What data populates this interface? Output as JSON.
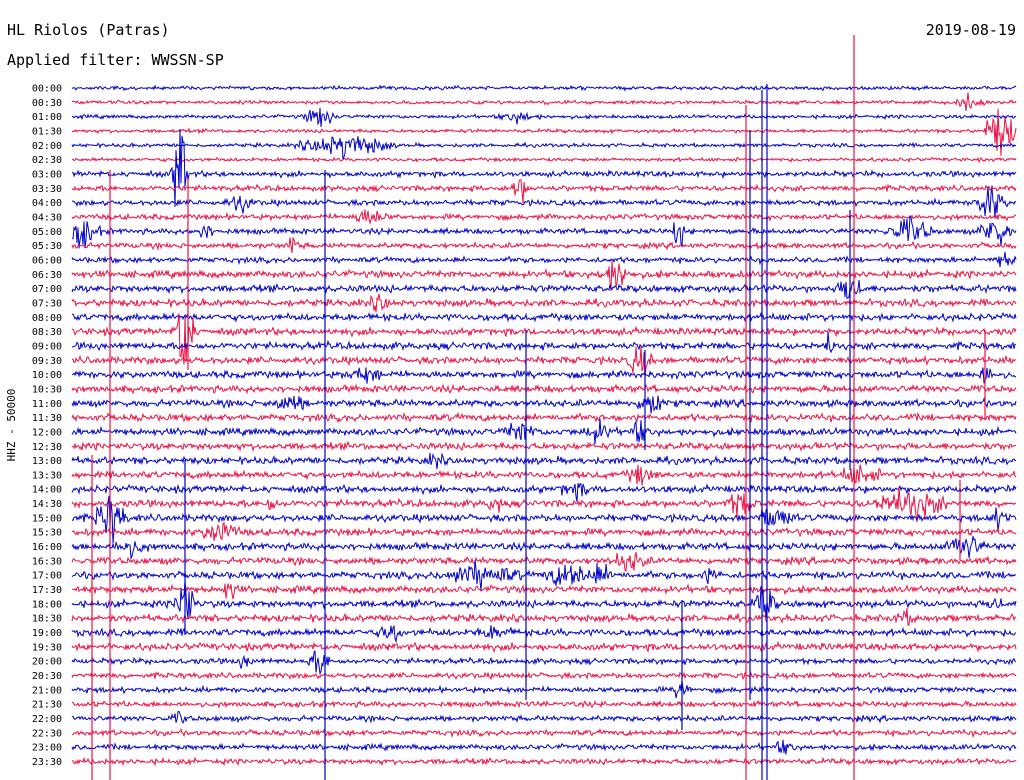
{
  "header": {
    "station": "HL Riolos (Patras)",
    "date": "2019-08-19",
    "filter": "Applied filter: WWSSN-SP"
  },
  "chart_data": {
    "type": "line",
    "title": "HL Riolos (Patras)",
    "subtitle": "Applied filter: WWSSN-SP",
    "xlabel": "",
    "ylabel": "HHZ - 50000",
    "y_tick_labels": [
      "00:00",
      "00:30",
      "01:00",
      "01:30",
      "02:00",
      "02:30",
      "03:00",
      "03:30",
      "04:00",
      "04:30",
      "05:00",
      "05:30",
      "06:00",
      "06:30",
      "07:00",
      "07:30",
      "08:00",
      "08:30",
      "09:00",
      "09:30",
      "10:00",
      "10:30",
      "11:00",
      "11:30",
      "12:00",
      "12:30",
      "13:00",
      "13:30",
      "14:00",
      "14:30",
      "15:00",
      "15:30",
      "16:00",
      "16:30",
      "17:00",
      "17:30",
      "18:00",
      "18:30",
      "19:00",
      "19:30",
      "20:00",
      "20:30",
      "21:00",
      "21:30",
      "22:00",
      "22:30",
      "23:00",
      "23:30"
    ],
    "series_colors": [
      "#0000cc",
      "#ee1144"
    ],
    "grid": false,
    "legend": "none"
  }
}
